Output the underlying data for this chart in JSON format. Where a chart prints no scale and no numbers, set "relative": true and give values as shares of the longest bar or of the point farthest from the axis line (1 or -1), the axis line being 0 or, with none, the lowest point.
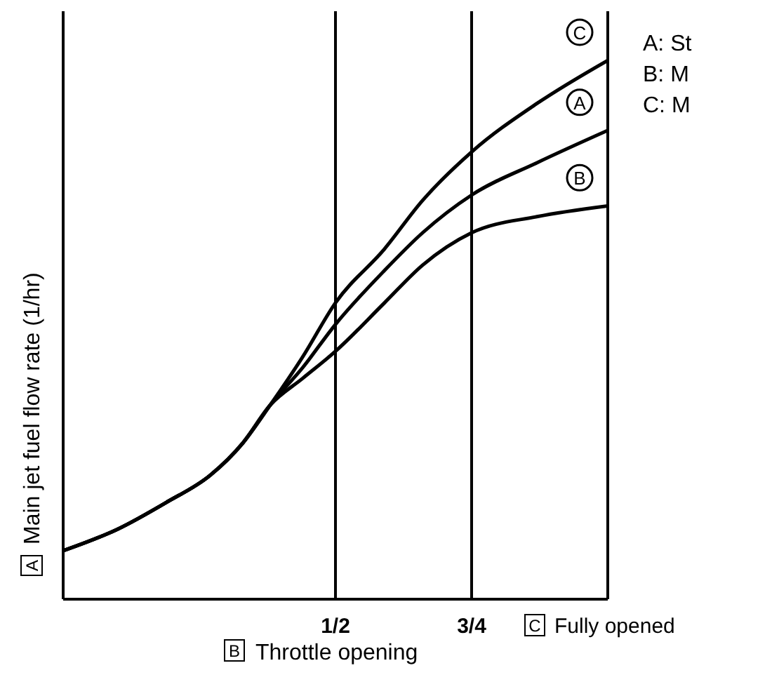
{
  "chart_data": {
    "type": "line",
    "relative": true,
    "xlabel": "B Throttle opening",
    "ylabel": "A Main jet fuel flow rate (1/hr)",
    "x": [
      0,
      0.1,
      0.19,
      0.27,
      0.33,
      0.38,
      0.44,
      0.5,
      0.59,
      0.66,
      0.75,
      0.87,
      1
    ],
    "series": [
      {
        "name": "A",
        "color": "#000000",
        "values": [
          0.09,
          0.13,
          0.18,
          0.23,
          0.29,
          0.36,
          0.43,
          0.51,
          0.61,
          0.68,
          0.75,
          0.81,
          0.87
        ]
      },
      {
        "name": "B",
        "color": "#000000",
        "values": [
          0.09,
          0.13,
          0.18,
          0.23,
          0.29,
          0.36,
          0.41,
          0.46,
          0.55,
          0.62,
          0.68,
          0.71,
          0.73
        ]
      },
      {
        "name": "C",
        "color": "#000000",
        "values": [
          0.09,
          0.13,
          0.18,
          0.23,
          0.29,
          0.36,
          0.45,
          0.55,
          0.65,
          0.74,
          0.83,
          0.92,
          1
        ]
      }
    ],
    "xlim": [
      0,
      1
    ],
    "xticks": [
      {
        "value": 0.5,
        "label": "1/2"
      },
      {
        "value": 0.75,
        "label": "3/4"
      },
      {
        "value": 1,
        "label": "C Fully opened"
      }
    ],
    "tick_labels": "x",
    "grid": "x",
    "marker": "none",
    "line_style": "solid",
    "annotations": [
      "A: St",
      "B: M",
      "C: M"
    ]
  }
}
